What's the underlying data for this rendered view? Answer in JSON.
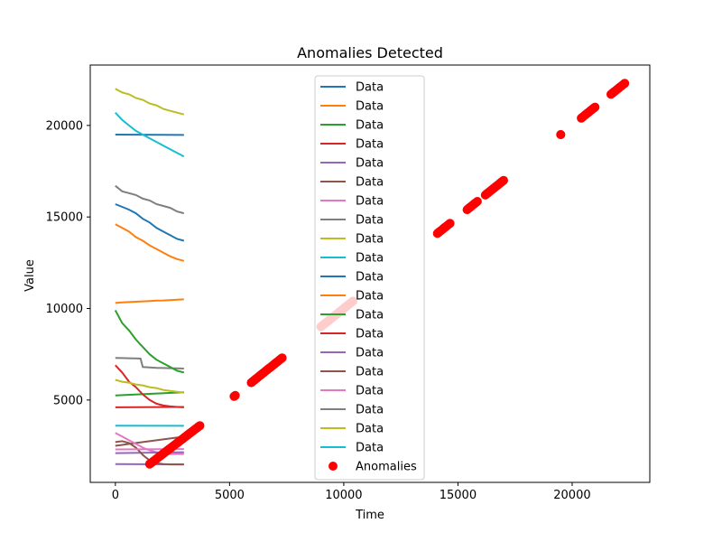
{
  "chart_data": {
    "type": "line",
    "title": "Anomalies Detected",
    "xlabel": "Time",
    "ylabel": "Value",
    "xlim": [
      -1100,
      23400
    ],
    "ylim": [
      500,
      23300
    ],
    "xticks": [
      0,
      5000,
      10000,
      15000,
      20000
    ],
    "yticks": [
      5000,
      10000,
      15000,
      20000
    ],
    "grid": false,
    "legend_position": "upper-center",
    "series": [
      {
        "name": "Data",
        "color": "#1f77b4",
        "x": [
          0,
          3000
        ],
        "y": [
          19500,
          19480
        ]
      },
      {
        "name": "Data",
        "color": "#ff7f0e",
        "x": [
          0,
          300,
          600,
          900,
          1200,
          1500,
          1800,
          2100,
          2400,
          2700,
          3000
        ],
        "y": [
          10300,
          10330,
          10350,
          10370,
          10390,
          10410,
          10430,
          10440,
          10460,
          10480,
          10500
        ]
      },
      {
        "name": "Data",
        "color": "#2ca02c",
        "x": [
          0,
          3000
        ],
        "y": [
          5250,
          5420
        ]
      },
      {
        "name": "Data",
        "color": "#d62728",
        "x": [
          0,
          300,
          600,
          900,
          1200,
          1500,
          1800,
          2100,
          2400,
          2700,
          3000
        ],
        "y": [
          6900,
          6500,
          6000,
          5700,
          5300,
          5000,
          4800,
          4700,
          4650,
          4620,
          4600
        ]
      },
      {
        "name": "Data",
        "color": "#9467bd",
        "x": [
          0,
          3000
        ],
        "y": [
          1500,
          1480
        ]
      },
      {
        "name": "Data",
        "color": "#8c564b",
        "x": [
          0,
          300,
          600,
          900,
          1200,
          1500,
          1800,
          2100,
          2400,
          2700,
          3000
        ],
        "y": [
          2500,
          2550,
          2600,
          2650,
          2700,
          2750,
          2800,
          2850,
          2900,
          2950,
          3000
        ]
      },
      {
        "name": "Data",
        "color": "#e377c2",
        "x": [
          0,
          300,
          600,
          900,
          1200,
          1500,
          1800,
          2100,
          2400,
          2700,
          3000
        ],
        "y": [
          3200,
          3000,
          2800,
          2600,
          2400,
          2250,
          2150,
          2100,
          2050,
          2050,
          2050
        ]
      },
      {
        "name": "Data",
        "color": "#7f7f7f",
        "x": [
          0,
          300,
          600,
          900,
          1100,
          1200,
          1500,
          1800,
          2100,
          2400,
          2700,
          3000
        ],
        "y": [
          7300,
          7290,
          7280,
          7270,
          7260,
          6800,
          6780,
          6760,
          6750,
          6740,
          6730,
          6720
        ]
      },
      {
        "name": "Data",
        "color": "#bcbd22",
        "x": [
          0,
          300,
          600,
          900,
          1200,
          1500,
          1800,
          2100,
          2400,
          2700,
          3000
        ],
        "y": [
          6100,
          6000,
          5950,
          5850,
          5800,
          5700,
          5650,
          5550,
          5500,
          5450,
          5400
        ]
      },
      {
        "name": "Data",
        "color": "#17becf",
        "x": [
          0,
          3000
        ],
        "y": [
          3600,
          3590
        ]
      },
      {
        "name": "Data",
        "color": "#1f77b4",
        "x": [
          0,
          300,
          600,
          900,
          1200,
          1500,
          1800,
          2100,
          2400,
          2700,
          3000
        ],
        "y": [
          15700,
          15550,
          15400,
          15200,
          14900,
          14700,
          14400,
          14200,
          14000,
          13800,
          13700
        ]
      },
      {
        "name": "Data",
        "color": "#ff7f0e",
        "x": [
          0,
          300,
          600,
          900,
          1200,
          1500,
          1800,
          2100,
          2400,
          2700,
          3000
        ],
        "y": [
          14600,
          14400,
          14200,
          13900,
          13700,
          13450,
          13250,
          13050,
          12850,
          12700,
          12600
        ]
      },
      {
        "name": "Data",
        "color": "#2ca02c",
        "x": [
          0,
          300,
          600,
          900,
          1200,
          1500,
          1800,
          2100,
          2400,
          2700,
          3000
        ],
        "y": [
          9900,
          9200,
          8800,
          8300,
          7900,
          7500,
          7200,
          7000,
          6800,
          6600,
          6500
        ]
      },
      {
        "name": "Data",
        "color": "#d62728",
        "x": [
          0,
          3000
        ],
        "y": [
          4600,
          4620
        ]
      },
      {
        "name": "Data",
        "color": "#9467bd",
        "x": [
          0,
          3000
        ],
        "y": [
          2100,
          2150
        ]
      },
      {
        "name": "Data",
        "color": "#8c564b",
        "x": [
          0,
          300,
          600,
          900,
          1200,
          1500,
          1800,
          2100,
          2400,
          2700,
          3000
        ],
        "y": [
          2700,
          2750,
          2650,
          2400,
          2000,
          1700,
          1550,
          1500,
          1480,
          1480,
          1480
        ]
      },
      {
        "name": "Data",
        "color": "#e377c2",
        "x": [
          0,
          3000
        ],
        "y": [
          2300,
          2320
        ]
      },
      {
        "name": "Data",
        "color": "#7f7f7f",
        "x": [
          0,
          300,
          600,
          900,
          1200,
          1500,
          1800,
          2100,
          2400,
          2700,
          3000
        ],
        "y": [
          16700,
          16400,
          16300,
          16200,
          16000,
          15900,
          15700,
          15600,
          15500,
          15300,
          15200
        ]
      },
      {
        "name": "Data",
        "color": "#bcbd22",
        "x": [
          0,
          300,
          600,
          900,
          1200,
          1500,
          1800,
          2100,
          2400,
          2700,
          3000
        ],
        "y": [
          22000,
          21800,
          21700,
          21500,
          21400,
          21200,
          21100,
          20900,
          20800,
          20700,
          20600
        ]
      },
      {
        "name": "Data",
        "color": "#17becf",
        "x": [
          0,
          300,
          600,
          900,
          1200,
          1500,
          1800,
          2100,
          2400,
          2700,
          3000
        ],
        "y": [
          20700,
          20300,
          20000,
          19700,
          19500,
          19300,
          19100,
          18900,
          18700,
          18500,
          18300
        ]
      }
    ],
    "anomalies": {
      "name": "Anomalies",
      "color": "#ff0000",
      "segments": [
        {
          "x0": 1500,
          "x1": 3700,
          "y0": 1500,
          "y1": 3600
        },
        {
          "x0": 5200,
          "x1": 5250,
          "y0": 5200,
          "y1": 5250
        },
        {
          "x0": 5950,
          "x1": 7300,
          "y0": 5950,
          "y1": 7300
        },
        {
          "x0": 9000,
          "x1": 10400,
          "y0": 9000,
          "y1": 10400
        },
        {
          "x0": 14100,
          "x1": 14650,
          "y0": 14100,
          "y1": 14650
        },
        {
          "x0": 15400,
          "x1": 15850,
          "y0": 15400,
          "y1": 15850
        },
        {
          "x0": 16200,
          "x1": 17000,
          "y0": 16200,
          "y1": 17000
        },
        {
          "x0": 19500,
          "x1": 19500,
          "y0": 19500,
          "y1": 19500
        },
        {
          "x0": 20400,
          "x1": 21000,
          "y0": 20400,
          "y1": 21000
        },
        {
          "x0": 21700,
          "x1": 22300,
          "y0": 21700,
          "y1": 22300
        }
      ]
    }
  }
}
